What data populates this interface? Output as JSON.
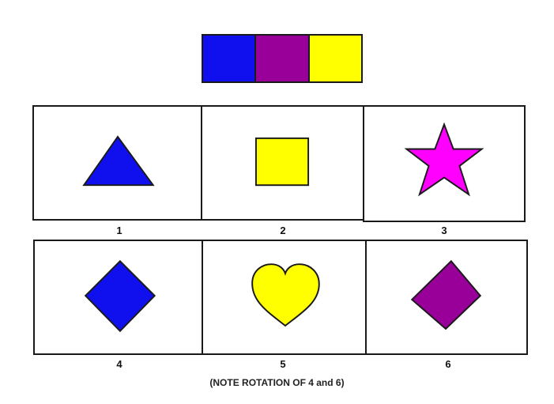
{
  "color_key": [
    {
      "name": "blue",
      "color": "#1010ee"
    },
    {
      "name": "purple",
      "color": "#990099"
    },
    {
      "name": "yellow",
      "color": "#ffff00"
    }
  ],
  "panels": [
    {
      "label": "1",
      "shape": "triangle",
      "color": "#1010ee"
    },
    {
      "label": "2",
      "shape": "square",
      "color": "#ffff00"
    },
    {
      "label": "3",
      "shape": "star",
      "color": "#ff00ff"
    },
    {
      "label": "4",
      "shape": "diamond",
      "color": "#1010ee"
    },
    {
      "label": "5",
      "shape": "heart",
      "color": "#ffff00"
    },
    {
      "label": "6",
      "shape": "diamond",
      "color": "#990099"
    }
  ],
  "note": "(NOTE ROTATION OF 4 and 6)"
}
